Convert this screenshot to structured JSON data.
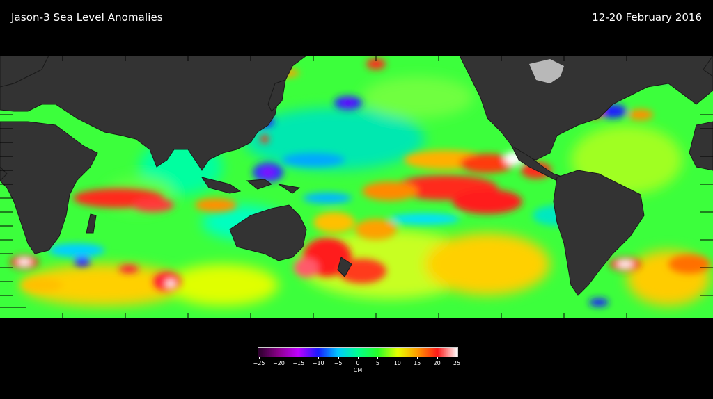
{
  "header": {
    "title": "Jason-3 Sea  Level Anomalies",
    "date_range": "12-20 February 2016"
  },
  "map": {
    "projection": "equirectangular, Pacific-centered",
    "colors": {
      "background": "#000000",
      "land": "#333333",
      "ice": "#b8b8b8",
      "coast_outline": "#1a1a1a"
    },
    "land_icon": "continent-shape",
    "field_palette": [
      "#2a002a",
      "#8a008a",
      "#c000ff",
      "#1a1aff",
      "#00c8ff",
      "#00ff90",
      "#28ff28",
      "#e6ff00",
      "#ff9a00",
      "#ff1a1a",
      "#ffffff"
    ]
  },
  "colorbar": {
    "range": [
      -25,
      25
    ],
    "ticks": [
      "−25",
      "−20",
      "−15",
      "−10",
      "−5",
      "0",
      "5",
      "10",
      "15",
      "20",
      "25"
    ],
    "unit": "CM",
    "stops": [
      {
        "value": -25,
        "color": "#2a002a"
      },
      {
        "value": -20,
        "color": "#8a008a"
      },
      {
        "value": -15,
        "color": "#c000ff"
      },
      {
        "value": -10,
        "color": "#1a1aff"
      },
      {
        "value": -5,
        "color": "#00c8ff"
      },
      {
        "value": 0,
        "color": "#00ff90"
      },
      {
        "value": 5,
        "color": "#28ff28"
      },
      {
        "value": 10,
        "color": "#e6ff00"
      },
      {
        "value": 15,
        "color": "#ff9a00"
      },
      {
        "value": 20,
        "color": "#ff1a1a"
      },
      {
        "value": 25,
        "color": "#ffffff"
      }
    ]
  }
}
